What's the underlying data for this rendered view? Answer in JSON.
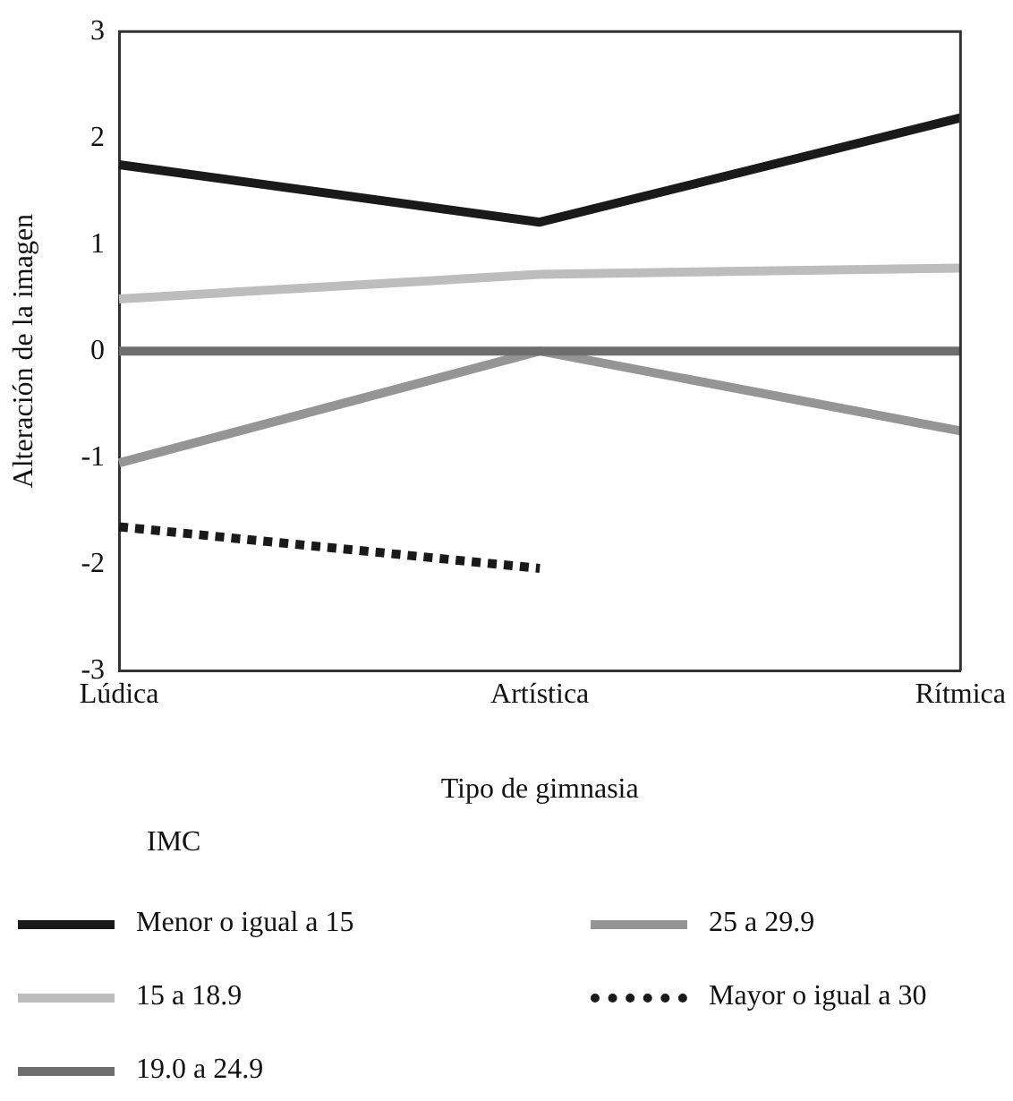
{
  "chart_data": {
    "type": "line",
    "xlabel": "Tipo de gimnasia",
    "ylabel": "Alteración de la imagen",
    "legend_title": "IMC",
    "categories": [
      "Lúdica",
      "Artística",
      "Rítmica"
    ],
    "series": [
      {
        "name": "Menor o igual a 15",
        "color": "#1a1a1a",
        "values": [
          1.75,
          1.21,
          2.19
        ]
      },
      {
        "name": "15 a 18.9",
        "color": "#bdbdbd",
        "values": [
          0.49,
          0.72,
          0.78
        ]
      },
      {
        "name": "19.0 a 24.9",
        "color": "#6e6e6e",
        "values": [
          0,
          0,
          0
        ]
      },
      {
        "name": "25 a 29.9",
        "color": "#959595",
        "values": [
          -1.05,
          0,
          -0.75
        ]
      },
      {
        "name": "Mayor o igual a 30",
        "color": "#1a1a1a",
        "values": [
          -1.65,
          -2.04,
          null
        ],
        "line_style": "dotted"
      }
    ],
    "ylim": [
      -3,
      3
    ],
    "yticks": [
      -3,
      -2,
      -1,
      0,
      1,
      2,
      3
    ],
    "grid": false,
    "legend": "bottom",
    "marker": "none"
  }
}
